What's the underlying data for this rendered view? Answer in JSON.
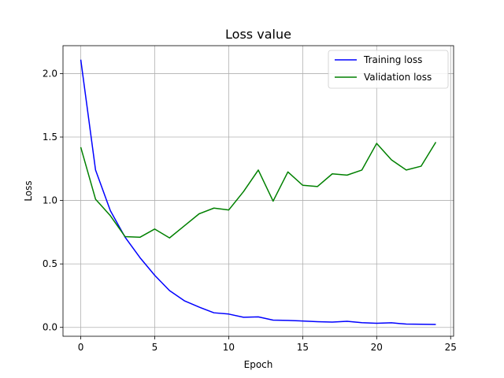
{
  "chart_data": {
    "type": "line",
    "title": "Loss value",
    "xlabel": "Epoch",
    "ylabel": "Loss",
    "xlim": [
      -1.2,
      25.2
    ],
    "ylim": [
      -0.07,
      2.22
    ],
    "xticks": [
      0,
      5,
      10,
      15,
      20,
      25
    ],
    "yticks": [
      0.0,
      0.5,
      1.0,
      1.5,
      2.0
    ],
    "grid": true,
    "legend_position": "top-right",
    "x": [
      0,
      1,
      2,
      3,
      4,
      5,
      6,
      7,
      8,
      9,
      10,
      11,
      12,
      13,
      14,
      15,
      16,
      17,
      18,
      19,
      20,
      21,
      22,
      23,
      24
    ],
    "series": [
      {
        "name": "Training loss",
        "color": "#0000ff",
        "values": [
          2.11,
          1.24,
          0.92,
          0.71,
          0.55,
          0.41,
          0.29,
          0.21,
          0.16,
          0.115,
          0.105,
          0.08,
          0.083,
          0.057,
          0.055,
          0.05,
          0.045,
          0.042,
          0.048,
          0.037,
          0.032,
          0.036,
          0.026,
          0.025,
          0.023
        ]
      },
      {
        "name": "Validation loss",
        "color": "#008000",
        "values": [
          1.42,
          1.01,
          0.88,
          0.715,
          0.71,
          0.775,
          0.705,
          0.8,
          0.895,
          0.94,
          0.925,
          1.07,
          1.24,
          0.995,
          1.225,
          1.12,
          1.11,
          1.21,
          1.2,
          1.24,
          1.45,
          1.32,
          1.24,
          1.27,
          1.46
        ]
      }
    ]
  }
}
